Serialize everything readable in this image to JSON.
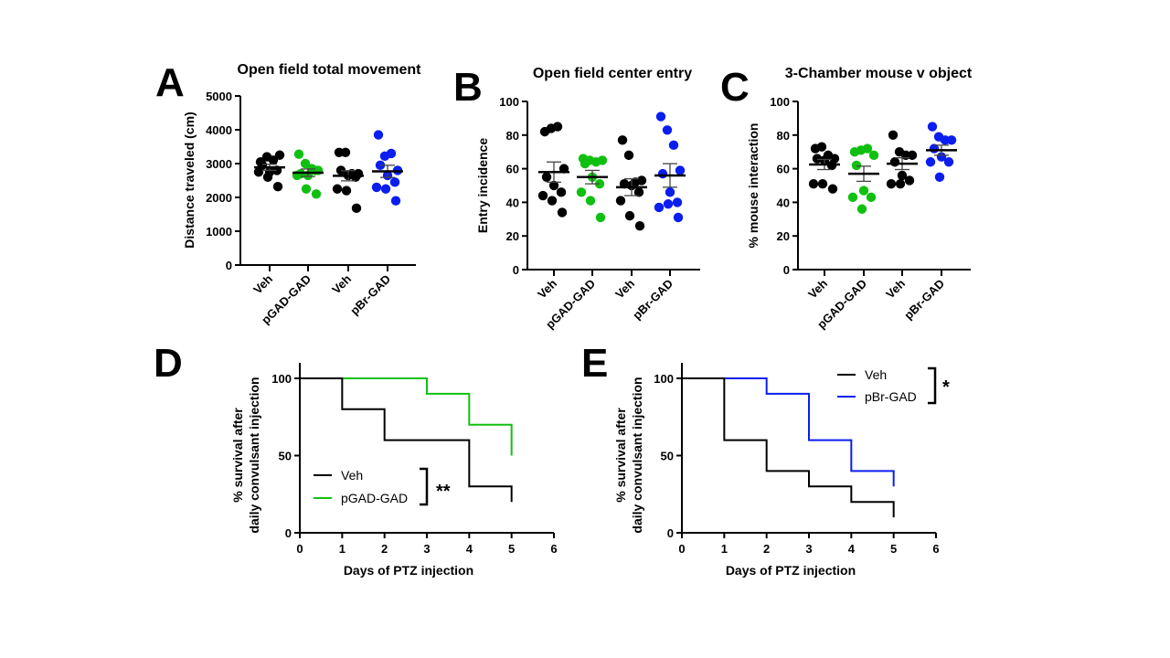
{
  "colors": {
    "veh": "#000000",
    "pgad": "#10c010",
    "pbr": "#0a1ef0"
  },
  "chart_data": [
    {
      "panel": "A",
      "type": "scatter",
      "title": "Open field total movement",
      "xlabel": "",
      "ylabel": "Distance traveled (cm)",
      "ylim": [
        0,
        5000
      ],
      "yticks": [
        0,
        1000,
        2000,
        3000,
        4000,
        5000
      ],
      "categories": [
        "Veh",
        "pGAD-GAD",
        "Veh",
        "pBr-GAD"
      ],
      "series": [
        {
          "name": "Veh",
          "color": "veh",
          "values": [
            3050,
            3200,
            3100,
            3250,
            2950,
            2750,
            2800,
            2750,
            2600,
            2320
          ],
          "mean": 2890,
          "sem": 90
        },
        {
          "name": "pGAD-GAD",
          "color": "pgad",
          "values": [
            3280,
            3000,
            2850,
            2800,
            2700,
            2650,
            2800,
            2650,
            2250,
            2100
          ],
          "mean": 2730,
          "sem": 110
        },
        {
          "name": "Veh",
          "color": "veh",
          "values": [
            3330,
            3330,
            2700,
            2700,
            2800,
            2650,
            2600,
            2250,
            2200,
            1680
          ],
          "mean": 2640,
          "sem": 150
        },
        {
          "name": "pBr-GAD",
          "color": "pbr",
          "values": [
            3850,
            3220,
            3300,
            2800,
            2950,
            2650,
            2450,
            2300,
            2250,
            1900
          ],
          "mean": 2770,
          "sem": 180
        }
      ]
    },
    {
      "panel": "B",
      "type": "scatter",
      "title": "Open field center entry",
      "xlabel": "",
      "ylabel": "Entry incidence",
      "ylim": [
        0,
        100
      ],
      "yticks": [
        0,
        20,
        40,
        60,
        80,
        100
      ],
      "categories": [
        "Veh",
        "pGAD-GAD",
        "Veh",
        "pBr-GAD"
      ],
      "series": [
        {
          "name": "Veh",
          "color": "veh",
          "values": [
            82,
            84,
            85,
            60,
            55,
            50,
            46,
            44,
            41,
            34
          ],
          "mean": 58,
          "sem": 6
        },
        {
          "name": "pGAD-GAD",
          "color": "pgad",
          "values": [
            66,
            65,
            64,
            65,
            63,
            55,
            51,
            46,
            41,
            31
          ],
          "mean": 55,
          "sem": 4
        },
        {
          "name": "Veh",
          "color": "veh",
          "values": [
            77,
            68,
            52,
            53,
            51,
            50,
            46,
            41,
            32,
            26
          ],
          "mean": 49,
          "sem": 5
        },
        {
          "name": "pBr-GAD",
          "color": "pbr",
          "values": [
            91,
            83,
            74,
            59,
            57,
            46,
            40,
            37,
            39,
            31
          ],
          "mean": 56,
          "sem": 7
        }
      ]
    },
    {
      "panel": "C",
      "type": "scatter",
      "title": "3-Chamber mouse v object",
      "xlabel": "",
      "ylabel": "% mouse interaction",
      "ylim": [
        0,
        100
      ],
      "yticks": [
        0,
        20,
        40,
        60,
        80,
        100
      ],
      "categories": [
        "Veh",
        "pGAD-GAD",
        "Veh",
        "pBr-GAD"
      ],
      "series": [
        {
          "name": "Veh",
          "color": "veh",
          "values": [
            72,
            73,
            68,
            66,
            66,
            65,
            62,
            51,
            51,
            48
          ],
          "mean": 62.5,
          "sem": 3
        },
        {
          "name": "pGAD-GAD",
          "color": "pgad",
          "values": [
            70,
            71,
            72,
            68,
            62,
            47,
            43,
            43,
            36
          ],
          "mean": 57,
          "sem": 4.5
        },
        {
          "name": "Veh",
          "color": "veh",
          "values": [
            80,
            70,
            68,
            68,
            64,
            56,
            53,
            51,
            51
          ],
          "mean": 63,
          "sem": 3.5
        },
        {
          "name": "pBr-GAD",
          "color": "pbr",
          "values": [
            85,
            79,
            77,
            77,
            72,
            67,
            64,
            64,
            55
          ],
          "mean": 71,
          "sem": 3
        }
      ]
    },
    {
      "panel": "D",
      "type": "line",
      "step": true,
      "title": "",
      "xlabel": "Days of PTZ injection",
      "ylabel": [
        "% survival after",
        "daily convulsant injection"
      ],
      "xlim": [
        0,
        6
      ],
      "ylim": [
        0,
        100
      ],
      "xticks": [
        0,
        1,
        2,
        3,
        4,
        5,
        6
      ],
      "yticks": [
        0,
        50,
        100
      ],
      "legend": "bottom-left",
      "significance": "**",
      "series": [
        {
          "name": "Veh",
          "color": "veh",
          "x": [
            0,
            1,
            2,
            3,
            4,
            5
          ],
          "y": [
            100,
            80,
            60,
            60,
            30,
            20
          ]
        },
        {
          "name": "pGAD-GAD",
          "color": "pgad",
          "x": [
            0,
            1,
            2,
            3,
            4,
            5
          ],
          "y": [
            100,
            100,
            100,
            90,
            70,
            50
          ]
        }
      ]
    },
    {
      "panel": "E",
      "type": "line",
      "step": true,
      "title": "",
      "xlabel": "Days of PTZ injection",
      "ylabel": [
        "% survival after",
        "daily convulsant injection"
      ],
      "xlim": [
        0,
        6
      ],
      "ylim": [
        0,
        100
      ],
      "xticks": [
        0,
        1,
        2,
        3,
        4,
        5,
        6
      ],
      "yticks": [
        0,
        50,
        100
      ],
      "legend": "top-right",
      "significance": "*",
      "series": [
        {
          "name": "Veh",
          "color": "veh",
          "x": [
            0,
            1,
            2,
            3,
            4,
            5
          ],
          "y": [
            100,
            60,
            40,
            30,
            20,
            10
          ]
        },
        {
          "name": "pBr-GAD",
          "color": "pbr",
          "x": [
            0,
            1,
            2,
            3,
            4,
            5
          ],
          "y": [
            100,
            100,
            90,
            60,
            40,
            30
          ]
        }
      ]
    }
  ]
}
